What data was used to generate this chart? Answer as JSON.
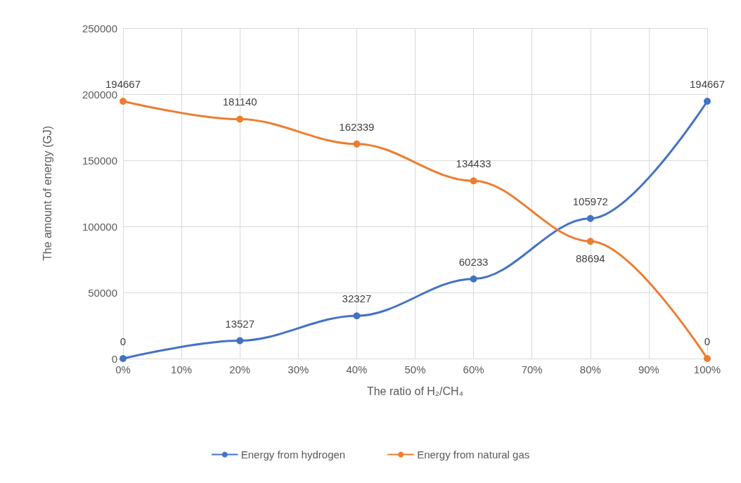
{
  "chart_data": {
    "type": "line",
    "xlabel": "The ratio of H₂/CH₄",
    "ylabel": "The amount of energy (GJ)",
    "x": [
      0,
      20,
      40,
      60,
      80,
      100
    ],
    "series": [
      {
        "name": "Energy from hydrogen",
        "color": "#4472c4",
        "values": [
          0,
          13527,
          32327,
          60233,
          105972,
          194667
        ]
      },
      {
        "name": "Energy from natural gas",
        "color": "#ed7d31",
        "values": [
          194667,
          181140,
          162339,
          134433,
          88694,
          0
        ]
      }
    ],
    "xlim": [
      0,
      100
    ],
    "xticks": [
      {
        "value": 0,
        "label": "0%"
      },
      {
        "value": 10,
        "label": "10%"
      },
      {
        "value": 20,
        "label": "20%"
      },
      {
        "value": 30,
        "label": "30%"
      },
      {
        "value": 40,
        "label": "40%"
      },
      {
        "value": 50,
        "label": "50%"
      },
      {
        "value": 60,
        "label": "60%"
      },
      {
        "value": 70,
        "label": "70%"
      },
      {
        "value": 80,
        "label": "80%"
      },
      {
        "value": 90,
        "label": "90%"
      },
      {
        "value": 100,
        "label": "100%"
      }
    ],
    "ylim": [
      0,
      250000
    ],
    "yticks": [
      0,
      50000,
      100000,
      150000,
      200000,
      250000
    ],
    "grid": true,
    "legend": "bottom",
    "marker": "circle",
    "line_style": "solid",
    "data_labels": true
  }
}
